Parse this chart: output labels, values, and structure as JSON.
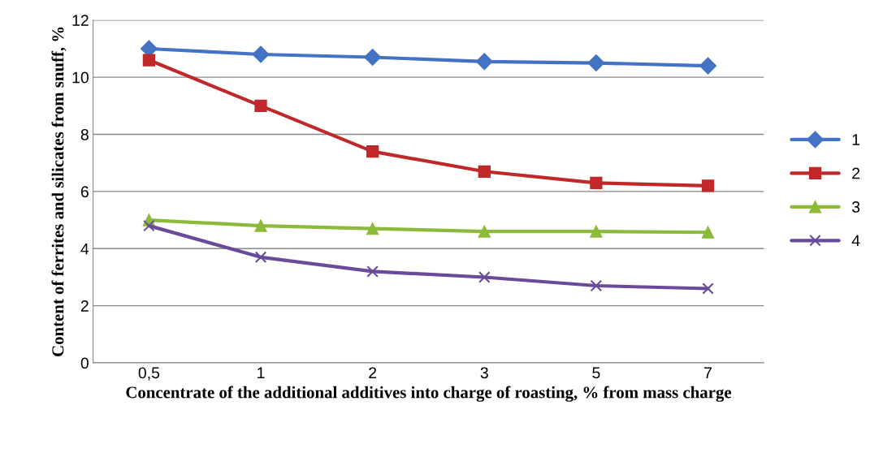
{
  "chart_data": {
    "type": "line",
    "xlabel": "Concentrate of the additional additives into charge of roasting, % from mass charge",
    "ylabel": "Content of ferrites and silicates from snuff, %",
    "categories": [
      "0,5",
      "1",
      "2",
      "3",
      "5",
      "7"
    ],
    "series": [
      {
        "name": "1",
        "color": "#4472c4",
        "marker": "diamond",
        "values": [
          11.0,
          10.8,
          10.7,
          10.55,
          10.5,
          10.4
        ]
      },
      {
        "name": "2",
        "color": "#c0282a",
        "marker": "square",
        "values": [
          10.6,
          9.0,
          7.4,
          6.7,
          6.3,
          6.2
        ]
      },
      {
        "name": "3",
        "color": "#8cba3a",
        "marker": "triangle",
        "values": [
          5.0,
          4.8,
          4.7,
          4.6,
          4.6,
          4.57
        ]
      },
      {
        "name": "4",
        "color": "#6a4a9a",
        "marker": "cross",
        "values": [
          4.8,
          3.7,
          3.2,
          3.0,
          2.7,
          2.6
        ]
      }
    ],
    "ylim": [
      0,
      12
    ],
    "yticks": [
      0,
      2,
      4,
      6,
      8,
      10,
      12
    ],
    "grid": "y",
    "legend": "right",
    "line_style": "solid"
  }
}
